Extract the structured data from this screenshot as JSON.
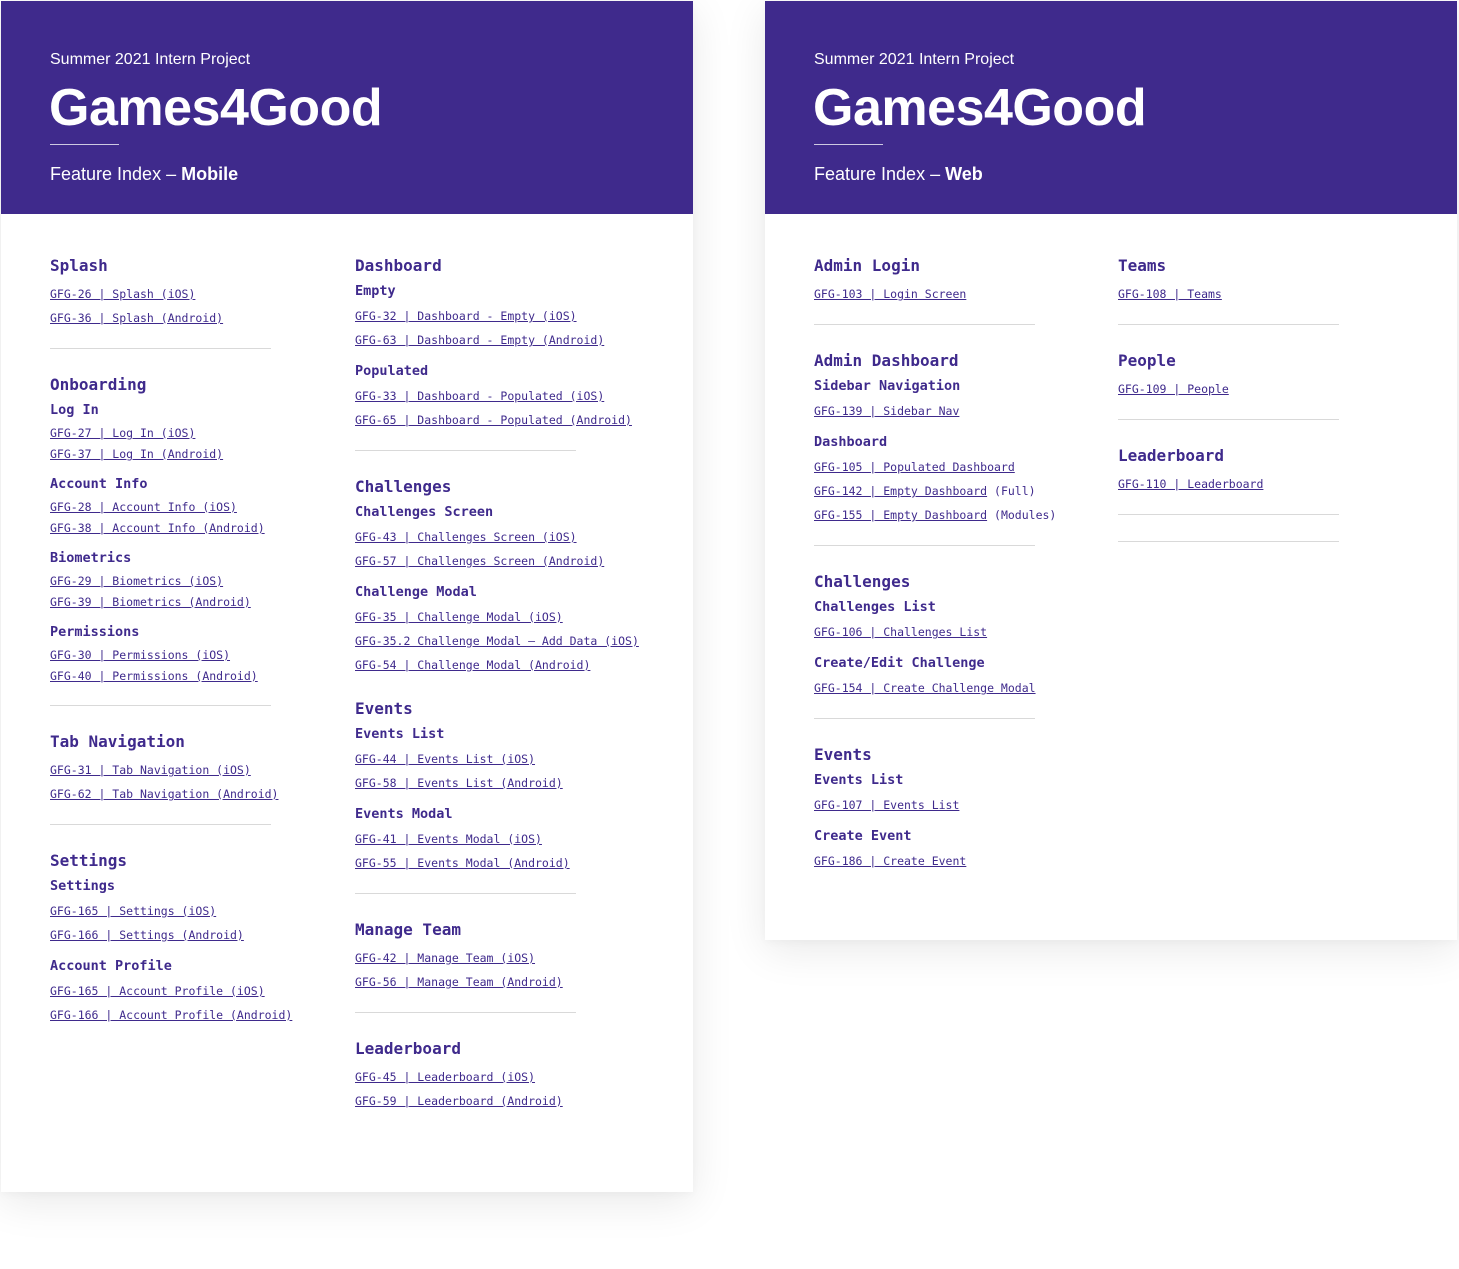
{
  "mobile": {
    "subtitle": "Summer 2021 Intern Project",
    "title": "Games4Good",
    "index_prefix": "Feature Index –",
    "index_platform": "Mobile",
    "left": [
      {
        "title": "Splash",
        "groups": [
          {
            "sub": "",
            "tight": false,
            "links": [
              {
                "text": "GFG-26 | Splash (iOS)",
                "suffix": ""
              },
              {
                "text": "GFG-36 | Splash (Android)",
                "suffix": ""
              }
            ]
          }
        ]
      },
      {
        "title": "Onboarding",
        "groups": [
          {
            "sub": "Log In",
            "tight": true,
            "links": [
              {
                "text": "GFG-27 | Log In (iOS)",
                "suffix": ""
              },
              {
                "text": "GFG-37 | Log In (Android)",
                "suffix": ""
              }
            ]
          },
          {
            "sub": "Account Info",
            "tight": true,
            "links": [
              {
                "text": "GFG-28 | Account Info (iOS)",
                "suffix": ""
              },
              {
                "text": "GFG-38 | Account Info (Android)",
                "suffix": ""
              }
            ]
          },
          {
            "sub": "Biometrics",
            "tight": true,
            "links": [
              {
                "text": "GFG-29 | Biometrics (iOS)",
                "suffix": ""
              },
              {
                "text": "GFG-39 | Biometrics (Android)",
                "suffix": ""
              }
            ]
          },
          {
            "sub": "Permissions",
            "tight": true,
            "links": [
              {
                "text": "GFG-30 | Permissions (iOS)",
                "suffix": ""
              },
              {
                "text": "GFG-40 | Permissions (Android)",
                "suffix": ""
              }
            ]
          }
        ]
      },
      {
        "title": "Tab Navigation",
        "groups": [
          {
            "sub": "",
            "tight": false,
            "links": [
              {
                "text": "GFG-31 | Tab Navigation (iOS)",
                "suffix": ""
              },
              {
                "text": "GFG-62 | Tab Navigation (Android)",
                "suffix": ""
              }
            ]
          }
        ]
      },
      {
        "title": "Settings",
        "last": true,
        "groups": [
          {
            "sub": "Settings",
            "tight": false,
            "links": [
              {
                "text": "GFG-165 | Settings (iOS)",
                "suffix": ""
              },
              {
                "text": "GFG-166 | Settings (Android)",
                "suffix": ""
              }
            ]
          },
          {
            "sub": "Account Profile",
            "tight": false,
            "links": [
              {
                "text": "GFG-165 | Account Profile (iOS)",
                "suffix": ""
              },
              {
                "text": "GFG-166 | Account Profile (Android)",
                "suffix": ""
              }
            ]
          }
        ]
      }
    ],
    "right": [
      {
        "title": "Dashboard",
        "groups": [
          {
            "sub": "Empty",
            "tight": false,
            "links": [
              {
                "text": "GFG-32 | Dashboard - Empty (iOS)",
                "suffix": ""
              },
              {
                "text": "GFG-63 | Dashboard - Empty (Android)",
                "suffix": ""
              }
            ]
          },
          {
            "sub": "Populated",
            "tight": false,
            "links": [
              {
                "text": "GFG-33 | Dashboard - Populated (iOS)",
                "suffix": ""
              },
              {
                "text": "GFG-65 | Dashboard - Populated (Android)",
                "suffix": ""
              }
            ]
          }
        ]
      },
      {
        "title": "Challenges",
        "groups": [
          {
            "sub": "Challenges Screen",
            "tight": false,
            "links": [
              {
                "text": "GFG-43 | Challenges Screen (iOS)",
                "suffix": ""
              },
              {
                "text": "GFG-57 | Challenges Screen (Android)",
                "suffix": ""
              }
            ]
          },
          {
            "sub": "Challenge Modal",
            "tight": false,
            "links": [
              {
                "text": "GFG-35 | Challenge Modal (iOS)",
                "suffix": ""
              },
              {
                "text": "GFG-35.2 Challenge Modal – Add Data (iOS)",
                "suffix": ""
              },
              {
                "text": "GFG-54 | Challenge Modal (Android)",
                "suffix": ""
              }
            ]
          },
          {
            "sub": "",
            "tight": false,
            "links": []
          }
        ]
      },
      {
        "title": "Events",
        "noTopDivider": true,
        "groups": [
          {
            "sub": "Events List",
            "tight": false,
            "links": [
              {
                "text": "GFG-44 | Events List (iOS)",
                "suffix": ""
              },
              {
                "text": "GFG-58 | Events List (Android)",
                "suffix": ""
              }
            ]
          },
          {
            "sub": "Events Modal",
            "tight": false,
            "links": [
              {
                "text": "GFG-41 | Events Modal (iOS)",
                "suffix": ""
              },
              {
                "text": "GFG-55 | Events Modal (Android)",
                "suffix": ""
              }
            ]
          }
        ]
      },
      {
        "title": "Manage Team",
        "groups": [
          {
            "sub": "",
            "tight": false,
            "links": [
              {
                "text": "GFG-42 | Manage Team (iOS)",
                "suffix": ""
              },
              {
                "text": "GFG-56 | Manage Team (Android)",
                "suffix": ""
              }
            ]
          }
        ]
      },
      {
        "title": "Leaderboard",
        "last": true,
        "groups": [
          {
            "sub": "",
            "tight": false,
            "links": [
              {
                "text": "GFG-45 | Leaderboard (iOS)",
                "suffix": ""
              },
              {
                "text": "GFG-59 | Leaderboard (Android)",
                "suffix": ""
              }
            ]
          }
        ]
      }
    ]
  },
  "web": {
    "subtitle": "Summer 2021 Intern Project",
    "title": "Games4Good",
    "index_prefix": "Feature Index –",
    "index_platform": "Web",
    "left": [
      {
        "title": "Admin Login",
        "groups": [
          {
            "sub": "",
            "tight": false,
            "links": [
              {
                "text": "GFG-103 | Login Screen",
                "suffix": ""
              }
            ]
          }
        ]
      },
      {
        "title": "Admin Dashboard",
        "groups": [
          {
            "sub": "Sidebar Navigation",
            "tight": false,
            "links": [
              {
                "text": "GFG-139 | Sidebar Nav",
                "suffix": ""
              }
            ]
          },
          {
            "sub": "Dashboard",
            "tight": false,
            "links": [
              {
                "text": "GFG-105 | Populated Dashboard",
                "suffix": ""
              },
              {
                "text": "GFG-142 | Empty Dashboard",
                "suffix": "(Full)"
              },
              {
                "text": "GFG-155 | Empty Dashboard",
                "suffix": "(Modules)"
              }
            ]
          }
        ]
      },
      {
        "title": "Challenges",
        "groups": [
          {
            "sub": "Challenges List",
            "tight": false,
            "links": [
              {
                "text": "GFG-106 | Challenges List",
                "suffix": ""
              }
            ]
          },
          {
            "sub": "Create/Edit Challenge",
            "tight": false,
            "links": [
              {
                "text": "GFG-154 | Create Challenge Modal",
                "suffix": ""
              }
            ]
          }
        ]
      },
      {
        "title": "Events",
        "last": true,
        "groups": [
          {
            "sub": "Events List",
            "tight": false,
            "links": [
              {
                "text": "GFG-107 | Events List",
                "suffix": ""
              }
            ]
          },
          {
            "sub": "Create Event",
            "tight": false,
            "links": [
              {
                "text": "GFG-186 | Create Event",
                "suffix": ""
              }
            ]
          }
        ]
      }
    ],
    "right": [
      {
        "title": "Teams",
        "groups": [
          {
            "sub": "",
            "tight": false,
            "links": [
              {
                "text": "GFG-108 | Teams",
                "suffix": ""
              }
            ]
          }
        ]
      },
      {
        "title": "People",
        "groups": [
          {
            "sub": "",
            "tight": false,
            "links": [
              {
                "text": "GFG-109 | People",
                "suffix": ""
              }
            ]
          }
        ]
      },
      {
        "title": "Leaderboard",
        "groups": [
          {
            "sub": "",
            "tight": false,
            "links": [
              {
                "text": "GFG-110 | Leaderboard",
                "suffix": ""
              }
            ]
          }
        ]
      }
    ]
  }
}
